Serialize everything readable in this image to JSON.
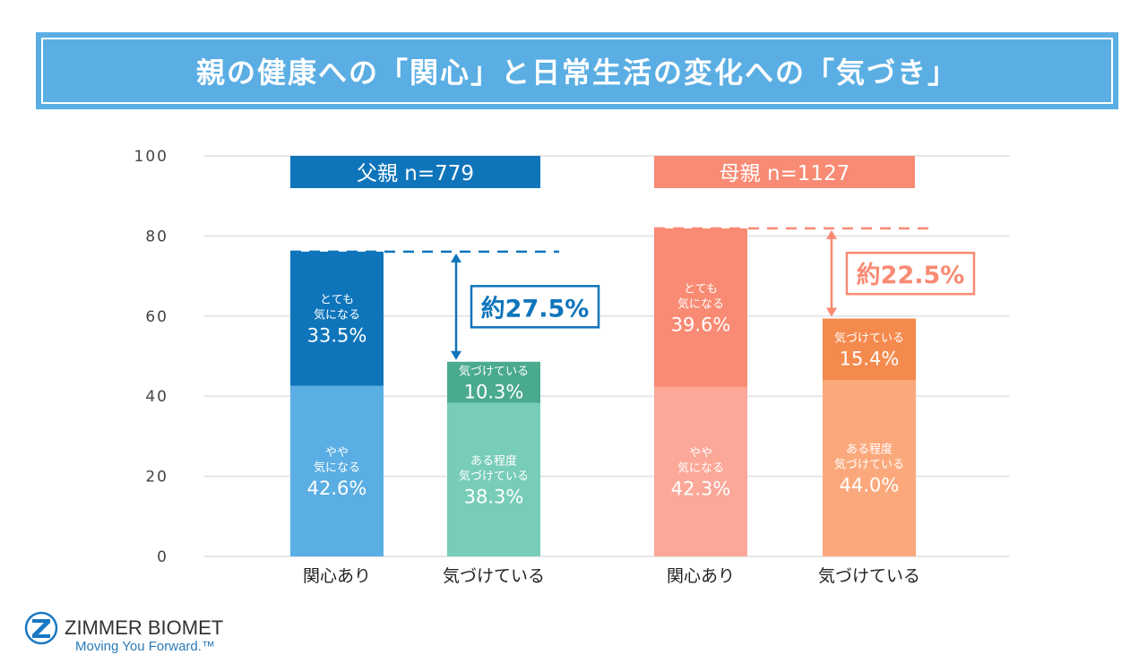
{
  "title": "親の健康への「関心」と日常生活の変化への「気づき」",
  "chart_data": {
    "type": "bar",
    "stacked": true,
    "ylim": [
      0,
      100
    ],
    "yticks": [
      0,
      20,
      40,
      60,
      80,
      100
    ],
    "grid": true,
    "groups": [
      {
        "label": "父親 n=779",
        "color": "#0f75bb",
        "bars": [
          {
            "category": "関心あり",
            "segments": [
              {
                "label": "やや\n気になる",
                "value": 42.6,
                "color": "#5aaee3"
              },
              {
                "label": "とても\n気になる",
                "value": 33.5,
                "color": "#0f75bb"
              }
            ]
          },
          {
            "category": "気づけている",
            "segments": [
              {
                "label": "ある程度\n気づけている",
                "value": 38.3,
                "color": "#78cdb9"
              },
              {
                "label": "気づけている",
                "value": 10.3,
                "color": "#4aaa8e"
              }
            ]
          }
        ],
        "gap_annotation": "約27.5%",
        "annotation_color": "#0f75bb"
      },
      {
        "label": "母親 n=1127",
        "color": "#f98a73",
        "bars": [
          {
            "category": "関心あり",
            "segments": [
              {
                "label": "やや\n気になる",
                "value": 42.3,
                "color": "#fba899"
              },
              {
                "label": "とても\n気になる",
                "value": 39.6,
                "color": "#f98a73"
              }
            ]
          },
          {
            "category": "気づけている",
            "segments": [
              {
                "label": "ある程度\n気づけている",
                "value": 44.0,
                "color": "#fba97c"
              },
              {
                "label": "気づけている",
                "value": 15.4,
                "color": "#f58a4e"
              }
            ]
          }
        ],
        "gap_annotation": "約22.5%",
        "annotation_color": "#f98a73"
      }
    ]
  },
  "logo": {
    "brand": "ZIMMER BIOMET",
    "tagline": "Moving You Forward.™"
  }
}
